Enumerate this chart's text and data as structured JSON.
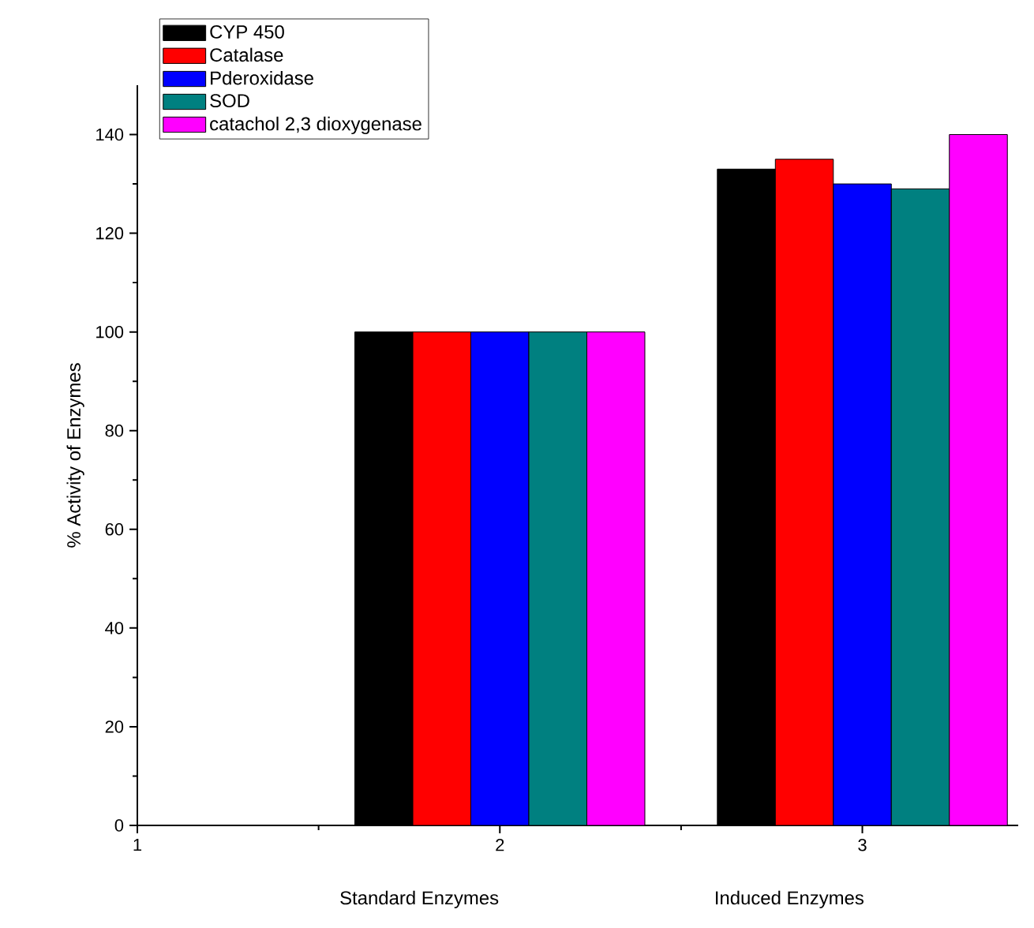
{
  "chart_data": {
    "type": "bar",
    "ylabel": "% Activity of Enzymes",
    "annotations": [
      "Standard Enzymes",
      "Induced Enzymes"
    ],
    "x": [
      2,
      3
    ],
    "series": [
      {
        "name": "CYP 450",
        "color": "#000000",
        "values": [
          100,
          133
        ]
      },
      {
        "name": "Catalase",
        "color": "#ff0000",
        "values": [
          100,
          135
        ]
      },
      {
        "name": "Pderoxidase",
        "color": "#0000ff",
        "values": [
          100,
          130
        ]
      },
      {
        "name": "SOD",
        "color": "#008080",
        "values": [
          100,
          129
        ]
      },
      {
        "name": "catachol 2,3 dioxygenase",
        "color": "#ff00ff",
        "values": [
          100,
          140
        ]
      }
    ],
    "xlim": [
      1,
      3.43
    ],
    "xticks": [
      1,
      2,
      3
    ],
    "ylim": [
      0,
      150
    ],
    "yticks": [
      0,
      20,
      40,
      60,
      80,
      100,
      120,
      140
    ],
    "legend": "top left"
  }
}
